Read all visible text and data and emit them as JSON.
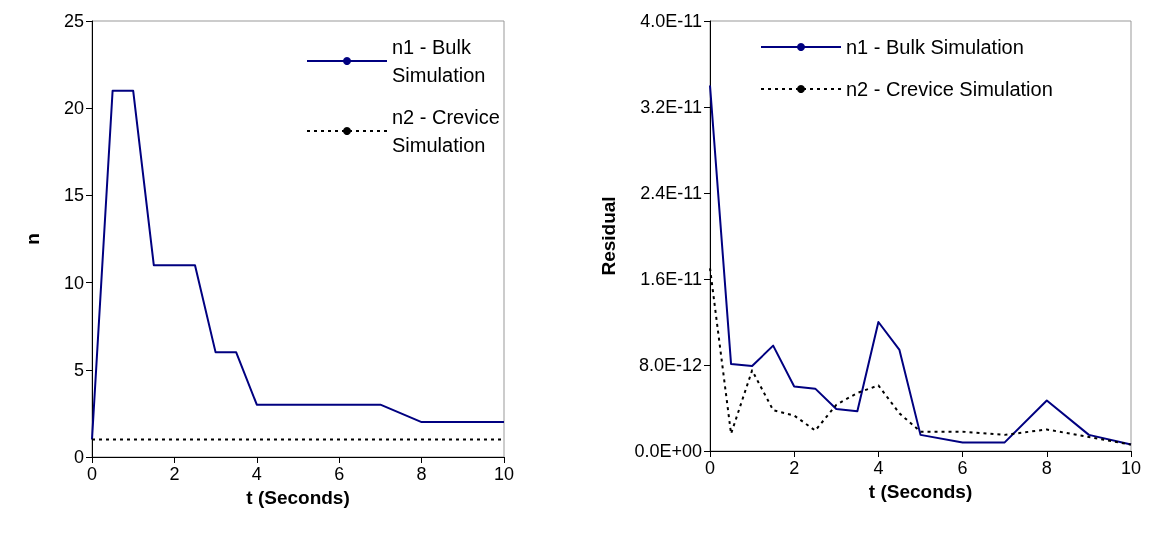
{
  "chart_data": [
    {
      "type": "line",
      "xlabel": "t (Seconds)",
      "ylabel": "n",
      "xlim": [
        0,
        10
      ],
      "xticks": [
        0,
        2,
        4,
        6,
        8,
        10
      ],
      "ylim": [
        0,
        25
      ],
      "yticks": [
        0,
        5,
        10,
        15,
        20,
        25
      ],
      "grid": false,
      "legend": "top right",
      "marker": "none",
      "series": [
        {
          "name": "n1 - Bulk Simulation",
          "color": "#000080",
          "line_style": "solid",
          "x": [
            0,
            0.5,
            1,
            1.5,
            2.5,
            3,
            3.5,
            4,
            7,
            8,
            10
          ],
          "values": [
            1,
            21,
            21,
            11,
            11,
            6,
            6,
            3,
            3,
            2,
            2
          ]
        },
        {
          "name": "n2 - Crevice Simulation",
          "color": "#000000",
          "line_style": "dotted",
          "x": [
            0,
            10
          ],
          "values": [
            1,
            1
          ]
        }
      ]
    },
    {
      "type": "line",
      "xlabel": "t (Seconds)",
      "ylabel": "Residual",
      "xlim": [
        0,
        10
      ],
      "xticks": [
        0,
        2,
        4,
        6,
        8,
        10
      ],
      "ylim": [
        0,
        4e-11
      ],
      "yticks": [
        {
          "value": 0,
          "label": "0.0E+00"
        },
        {
          "value": 8e-12,
          "label": "8.0E-12"
        },
        {
          "value": 1.6e-11,
          "label": "1.6E-11"
        },
        {
          "value": 2.4e-11,
          "label": "2.4E-11"
        },
        {
          "value": 3.2e-11,
          "label": "3.2E-11"
        },
        {
          "value": 4e-11,
          "label": "4.0E-11"
        }
      ],
      "grid": false,
      "legend": "top right",
      "marker": "none",
      "series": [
        {
          "name": "n1 - Bulk Simulation",
          "color": "#000080",
          "line_style": "solid",
          "x": [
            0,
            0.5,
            1,
            1.5,
            2,
            2.5,
            3,
            3.5,
            4,
            4.5,
            5,
            6,
            7,
            8,
            9,
            10
          ],
          "values": [
            3.4e-11,
            8.1e-12,
            7.9e-12,
            9.8e-12,
            6e-12,
            5.8e-12,
            3.9e-12,
            3.7e-12,
            1.2e-11,
            9.4e-12,
            1.5e-12,
            8e-13,
            8e-13,
            4.7e-12,
            1.5e-12,
            6e-13
          ]
        },
        {
          "name": "n2 - Crevice Simulation",
          "color": "#000000",
          "line_style": "dotted",
          "x": [
            0,
            0.5,
            1,
            1.5,
            2,
            2.5,
            3,
            3.5,
            4,
            4.5,
            5,
            6,
            7,
            8,
            9,
            10
          ],
          "values": [
            1.7e-11,
            1.6e-12,
            7.5e-12,
            3.8e-12,
            3.3e-12,
            1.9e-12,
            4.3e-12,
            5.4e-12,
            6.1e-12,
            3.5e-12,
            1.8e-12,
            1.8e-12,
            1.5e-12,
            2e-12,
            1.3e-12,
            6e-13
          ]
        }
      ]
    }
  ]
}
